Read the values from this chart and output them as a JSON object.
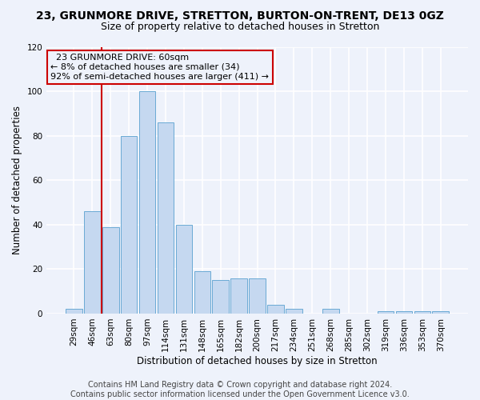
{
  "title": "23, GRUNMORE DRIVE, STRETTON, BURTON-ON-TRENT, DE13 0GZ",
  "subtitle": "Size of property relative to detached houses in Stretton",
  "xlabel": "Distribution of detached houses by size in Stretton",
  "ylabel": "Number of detached properties",
  "categories": [
    "29sqm",
    "46sqm",
    "63sqm",
    "80sqm",
    "97sqm",
    "114sqm",
    "131sqm",
    "148sqm",
    "165sqm",
    "182sqm",
    "200sqm",
    "217sqm",
    "234sqm",
    "251sqm",
    "268sqm",
    "285sqm",
    "302sqm",
    "319sqm",
    "336sqm",
    "353sqm",
    "370sqm"
  ],
  "values": [
    2,
    46,
    39,
    80,
    100,
    86,
    40,
    19,
    15,
    16,
    16,
    4,
    2,
    0,
    2,
    0,
    0,
    1,
    1,
    1,
    1
  ],
  "bar_color": "#c5d8f0",
  "bar_edge_color": "#6aaad4",
  "ylim": [
    0,
    120
  ],
  "yticks": [
    0,
    20,
    40,
    60,
    80,
    100,
    120
  ],
  "annotation_line1": "  23 GRUNMORE DRIVE: 60sqm",
  "annotation_line2": "← 8% of detached houses are smaller (34)",
  "annotation_line3": "92% of semi-detached houses are larger (411) →",
  "vline_x": 1.5,
  "vline_color": "#cc0000",
  "footer_line1": "Contains HM Land Registry data © Crown copyright and database right 2024.",
  "footer_line2": "Contains public sector information licensed under the Open Government Licence v3.0.",
  "bg_color": "#eef2fb",
  "grid_color": "#ffffff",
  "title_fontsize": 10,
  "subtitle_fontsize": 9,
  "axis_label_fontsize": 8.5,
  "tick_fontsize": 7.5,
  "footer_fontsize": 7,
  "ann_fontsize": 8
}
